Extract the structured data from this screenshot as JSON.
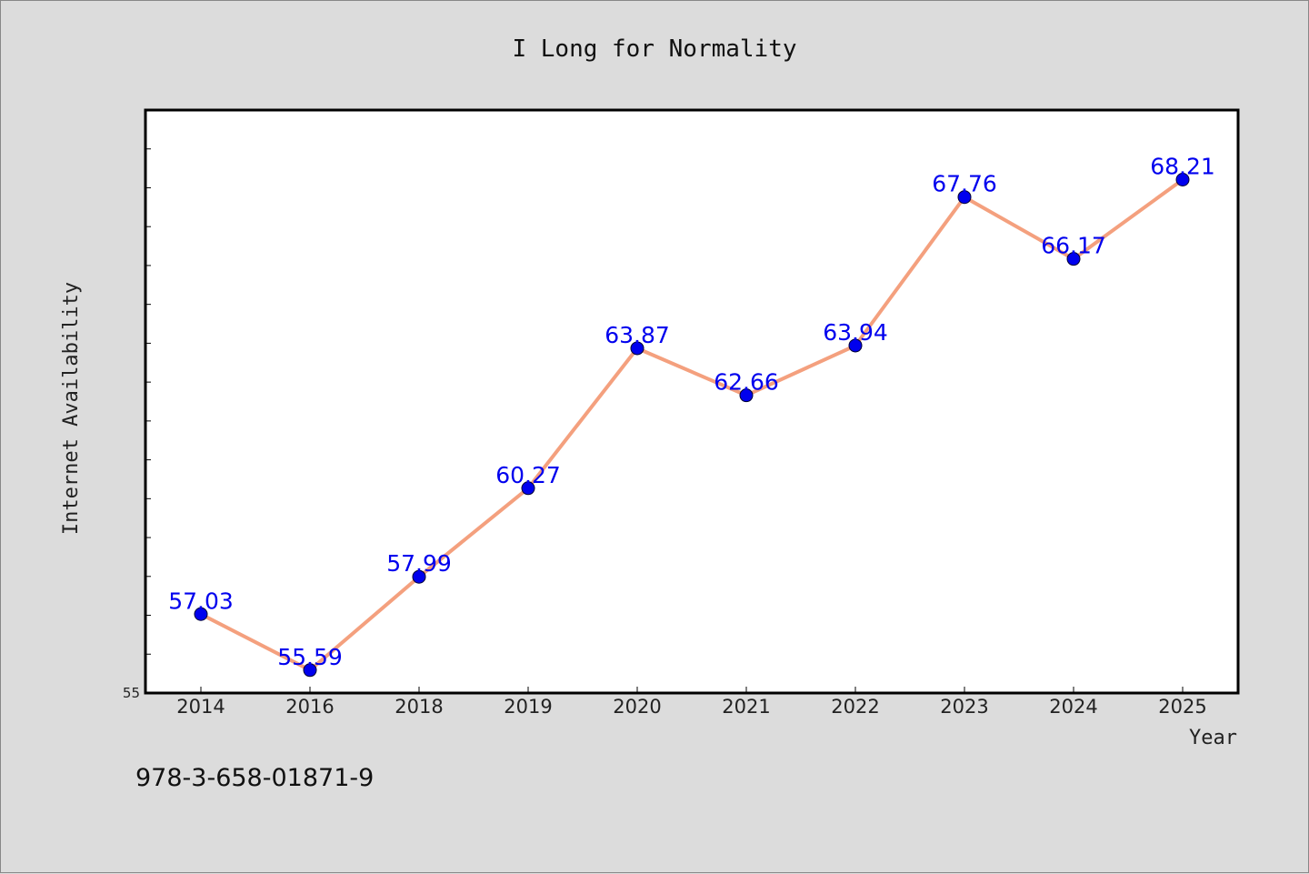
{
  "chart_data": {
    "type": "line",
    "title": "I Long for Normality",
    "xlabel": "Year",
    "ylabel": "Internet Availability",
    "categories": [
      "2014",
      "2016",
      "2018",
      "2019",
      "2020",
      "2021",
      "2022",
      "2023",
      "2024",
      "2025"
    ],
    "series": [
      {
        "values": [
          57.03,
          55.59,
          57.99,
          60.27,
          63.87,
          62.66,
          63.94,
          67.76,
          66.17,
          68.21
        ],
        "labels": [
          "57.03",
          "55.59",
          "57.99",
          "60.27",
          "63.87",
          "62.66",
          "63.94",
          "67.76",
          "66.17",
          "68.21"
        ],
        "line_color": "#f4a07e",
        "marker_color": "#0000ee",
        "label_color": "#0000ee"
      }
    ],
    "ylim": [
      55,
      70
    ],
    "y_tick_labels": [
      "55"
    ],
    "grid": false,
    "legend": "none"
  },
  "footer": {
    "isbn": "978-3-658-01871-9"
  },
  "colors": {
    "background": "#dcdcdc",
    "plot_background": "#ffffff",
    "axis": "#000000"
  }
}
